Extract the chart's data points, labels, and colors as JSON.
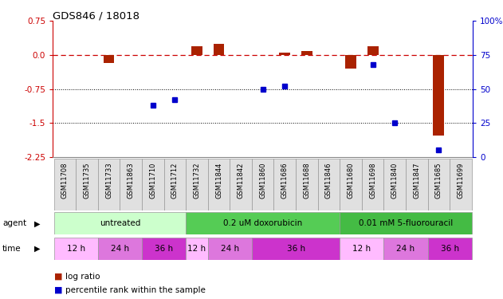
{
  "title": "GDS846 / 18018",
  "samples": [
    "GSM11708",
    "GSM11735",
    "GSM11733",
    "GSM11863",
    "GSM11710",
    "GSM11712",
    "GSM11732",
    "GSM11844",
    "GSM11842",
    "GSM11860",
    "GSM11686",
    "GSM11688",
    "GSM11846",
    "GSM11680",
    "GSM11698",
    "GSM11840",
    "GSM11847",
    "GSM11685",
    "GSM11699"
  ],
  "log_ratio": [
    0.0,
    0.0,
    -0.18,
    0.0,
    0.0,
    0.0,
    0.2,
    0.24,
    0.0,
    0.0,
    0.05,
    0.08,
    0.0,
    -0.3,
    0.2,
    0.0,
    0.0,
    -1.78,
    0.0
  ],
  "percentile_rank": [
    null,
    null,
    null,
    null,
    38,
    42,
    null,
    null,
    null,
    50,
    52,
    null,
    null,
    null,
    68,
    25,
    null,
    5,
    null
  ],
  "ylim_left": [
    -2.25,
    0.75
  ],
  "ylim_right": [
    0,
    100
  ],
  "yticks_left": [
    0.75,
    0.0,
    -0.75,
    -1.5,
    -2.25
  ],
  "yticks_right": [
    100,
    75,
    50,
    25,
    0
  ],
  "hlines": [
    -0.75,
    -1.5
  ],
  "agent_groups": [
    {
      "label": "untreated",
      "start": 0,
      "end": 6,
      "color": "#ccffcc"
    },
    {
      "label": "0.2 uM doxorubicin",
      "start": 6,
      "end": 13,
      "color": "#55cc55"
    },
    {
      "label": "0.01 mM 5-fluorouracil",
      "start": 13,
      "end": 19,
      "color": "#44bb44"
    }
  ],
  "time_groups": [
    {
      "label": "12 h",
      "start": 0,
      "end": 2,
      "color": "#ffbbff"
    },
    {
      "label": "24 h",
      "start": 2,
      "end": 4,
      "color": "#dd77dd"
    },
    {
      "label": "36 h",
      "start": 4,
      "end": 6,
      "color": "#cc33cc"
    },
    {
      "label": "12 h",
      "start": 6,
      "end": 7,
      "color": "#ffbbff"
    },
    {
      "label": "24 h",
      "start": 7,
      "end": 9,
      "color": "#dd77dd"
    },
    {
      "label": "36 h",
      "start": 9,
      "end": 13,
      "color": "#cc33cc"
    },
    {
      "label": "12 h",
      "start": 13,
      "end": 15,
      "color": "#ffbbff"
    },
    {
      "label": "24 h",
      "start": 15,
      "end": 17,
      "color": "#dd77dd"
    },
    {
      "label": "36 h",
      "start": 17,
      "end": 19,
      "color": "#cc33cc"
    }
  ],
  "bar_color": "#aa2200",
  "dot_color": "#0000cc",
  "zero_line_color": "#cc0000",
  "grid_color": "#000000"
}
